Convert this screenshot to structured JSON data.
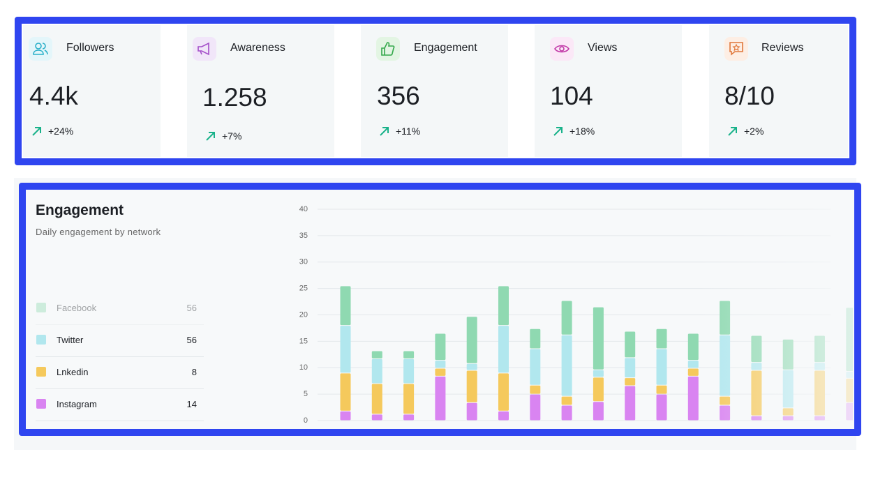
{
  "cards": [
    {
      "label": "Followers",
      "value": "4.4k",
      "change": "+24%"
    },
    {
      "label": "Awareness",
      "value": "1.258",
      "change": "+7%"
    },
    {
      "label": "Engagement",
      "value": "356",
      "change": "+11%"
    },
    {
      "label": "Views",
      "value": "104",
      "change": "+18%"
    },
    {
      "label": "Reviews",
      "value": "8/10",
      "change": "+2%"
    }
  ],
  "chart_data": {
    "type": "bar",
    "stacked": true,
    "title": "Engagement",
    "subtitle": "Daily engagement by network",
    "ylim": [
      0,
      40
    ],
    "yticks": [
      0,
      5,
      10,
      15,
      20,
      25,
      30,
      35,
      40
    ],
    "grid": true,
    "series": [
      {
        "name": "Instagram",
        "color": "#d984f1",
        "total": 14,
        "values": [
          1.8,
          1.2,
          1.2,
          8.4,
          3.4,
          1.8,
          5.0,
          2.9,
          3.6,
          6.6,
          5.0,
          8.4,
          2.9,
          0.9,
          0.9,
          0.9,
          3.4
        ]
      },
      {
        "name": "Lnkedin",
        "color": "#f5c95c",
        "total": 8,
        "values": [
          7.2,
          5.8,
          5.8,
          1.5,
          6.1,
          7.2,
          1.7,
          1.7,
          4.6,
          1.5,
          1.7,
          1.5,
          1.7,
          8.6,
          1.5,
          8.6,
          4.6
        ]
      },
      {
        "name": "Twitter",
        "color": "#b1e7ee",
        "total": 56,
        "values": [
          9.0,
          4.7,
          4.7,
          1.5,
          1.3,
          9.0,
          6.9,
          11.6,
          1.4,
          3.8,
          6.9,
          1.5,
          11.6,
          1.5,
          7.2,
          1.5,
          1.3
        ]
      },
      {
        "name": "Facebook",
        "color": "#8fd9b1",
        "total": 56,
        "values": [
          7.5,
          1.5,
          1.5,
          5.1,
          8.9,
          7.5,
          3.8,
          6.5,
          11.9,
          5.0,
          3.8,
          5.1,
          6.5,
          5.1,
          5.8,
          5.1,
          12.1
        ]
      }
    ]
  }
}
